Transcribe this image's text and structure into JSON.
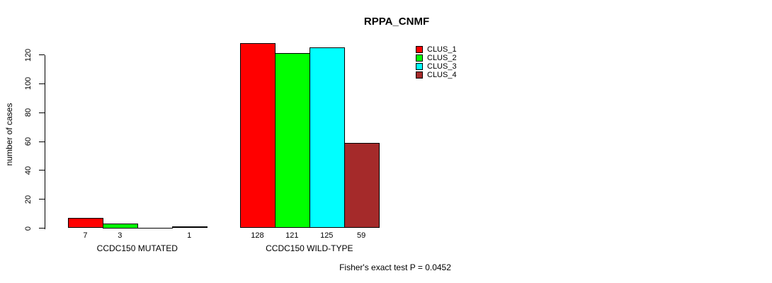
{
  "chart_data": {
    "type": "bar",
    "title": "RPPA_CNMF",
    "ylabel": "number of cases",
    "xlabel": "",
    "ylim": [
      0,
      130
    ],
    "yticks": [
      0,
      20,
      40,
      60,
      80,
      100,
      120
    ],
    "grid": false,
    "legend_position": "top-right",
    "legend": [
      "CLUS_1",
      "CLUS_2",
      "CLUS_3",
      "CLUS_4"
    ],
    "series_colors": [
      "#ff0000",
      "#00ff00",
      "#00ffff",
      "#a52a2a"
    ],
    "groups": [
      {
        "label": "CCDC150 MUTATED",
        "values": [
          7,
          3,
          0,
          1
        ],
        "bar_labels": [
          "7",
          "3",
          "",
          "1"
        ]
      },
      {
        "label": "CCDC150 WILD-TYPE",
        "values": [
          128,
          121,
          125,
          59
        ],
        "bar_labels": [
          "128",
          "121",
          "125",
          "59"
        ]
      }
    ],
    "annotation": "Fisher's exact test P = 0.0452"
  }
}
